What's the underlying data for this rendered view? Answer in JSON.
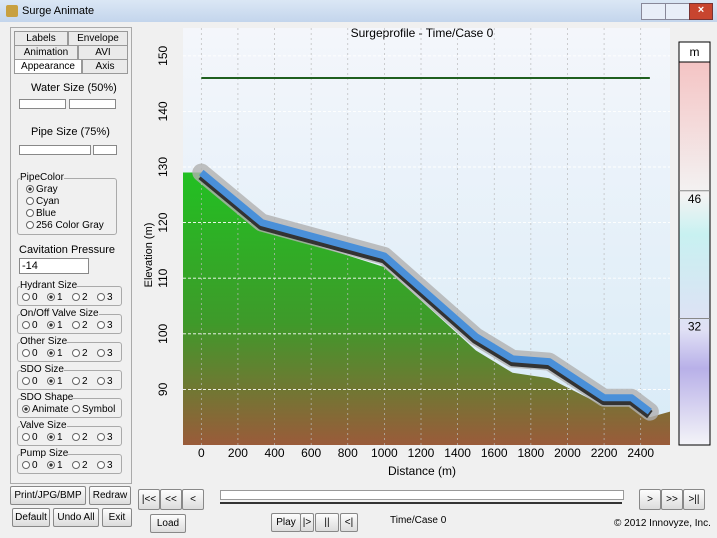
{
  "window": {
    "title": "Surge Animate"
  },
  "tabs": [
    "Labels",
    "Envelope",
    "Animation",
    "AVI",
    "Appearance",
    "Axis"
  ],
  "panel": {
    "water_size": "Water Size (50%)",
    "pipe_size": "Pipe Size  (75%)",
    "pipe_color": {
      "label": "PipeColor",
      "options": [
        "Gray",
        "Cyan",
        "Blue",
        "256 Color Gray"
      ],
      "selected": 0
    },
    "cavitation_label": "Cavitation Pressure",
    "cavitation_value": "-14",
    "groups": [
      {
        "label": "Hydrant Size",
        "options": [
          "0",
          "1",
          "2",
          "3"
        ],
        "selected": 1
      },
      {
        "label": "On/Off Valve Size",
        "options": [
          "0",
          "1",
          "2",
          "3"
        ],
        "selected": 1
      },
      {
        "label": "Other Size",
        "options": [
          "0",
          "1",
          "2",
          "3"
        ],
        "selected": 1
      },
      {
        "label": "SDO Size",
        "options": [
          "0",
          "1",
          "2",
          "3"
        ],
        "selected": 1
      },
      {
        "label": "SDO Shape",
        "options": [
          "Animate",
          "Symbol"
        ],
        "selected": 0
      },
      {
        "label": "Valve Size",
        "options": [
          "0",
          "1",
          "2",
          "3"
        ],
        "selected": 1
      },
      {
        "label": "Pump Size",
        "options": [
          "0",
          "1",
          "2",
          "3"
        ],
        "selected": 1
      }
    ],
    "buttons": [
      "Print/JPG/BMP",
      "Redraw",
      "Default",
      "Undo All",
      "Exit"
    ]
  },
  "player": {
    "nav": [
      "|<<",
      "<<",
      "<",
      ">",
      ">>",
      ">||"
    ],
    "load": "Load",
    "play": [
      "Play",
      "|>",
      "||",
      "<|"
    ],
    "status": "Time/Case 0",
    "copyright": "© 2012 Innovyze, Inc."
  },
  "chart": {
    "type": "line",
    "title": "Surgeprofile - Time/Case 0",
    "x_label": "Distance (m)",
    "y_label": "Elevation (m)",
    "xlim": [
      -100,
      2560
    ],
    "ylim": [
      80,
      155
    ],
    "xticks": [
      0,
      200,
      400,
      600,
      800,
      1000,
      1200,
      1400,
      1600,
      1800,
      2000,
      2200,
      2400
    ],
    "yticks": [
      90,
      100,
      110,
      120,
      130,
      140,
      150
    ],
    "grid": true,
    "series": [
      {
        "role": "ground",
        "color": "#22bb22",
        "x": [
          -100,
          0,
          330,
          1000,
          1500,
          1700,
          1900,
          2200,
          2350,
          2450,
          2560
        ],
        "values": [
          129,
          129,
          119,
          112,
          97,
          93,
          92,
          87,
          87,
          85,
          86
        ]
      },
      {
        "role": "pipe",
        "color": "#4a90d9",
        "x": [
          0,
          330,
          1000,
          1500,
          1700,
          1900,
          2200,
          2350,
          2450
        ],
        "values": [
          129,
          120,
          114,
          99.5,
          95.5,
          95,
          88.5,
          88.5,
          86
        ]
      },
      {
        "role": "hgl",
        "color": "#1f5f1f",
        "x": [
          0,
          2450
        ],
        "values": [
          146,
          146
        ]
      }
    ],
    "colorbar": {
      "unit": "m",
      "lim": [
        19,
        61
      ],
      "ticks": [
        32,
        46
      ]
    }
  }
}
